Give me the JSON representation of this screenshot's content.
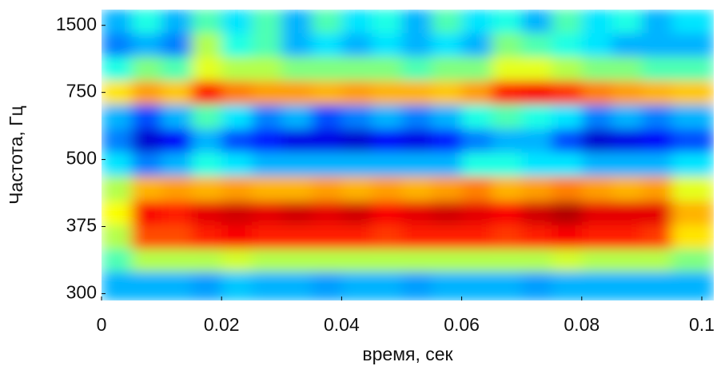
{
  "chart_data": {
    "type": "heatmap",
    "colormap": "jet",
    "yscale": "reciprocal",
    "x_label": "время, сек",
    "y_label": "Частота, Гц",
    "xlim": [
      0,
      0.102
    ],
    "xticks": [
      0,
      0.02,
      0.04,
      0.06,
      0.08,
      0.1
    ],
    "ylim": [
      294,
      1960
    ],
    "yticks": [
      300,
      375,
      500,
      750,
      1500
    ],
    "zlim": [
      0,
      1
    ],
    "x": [
      0.0025,
      0.0075,
      0.0125,
      0.0175,
      0.0225,
      0.0275,
      0.0325,
      0.0375,
      0.0425,
      0.0475,
      0.0525,
      0.0575,
      0.0625,
      0.0675,
      0.0725,
      0.0775,
      0.0825,
      0.0875,
      0.0925,
      0.0975
    ],
    "y": [
      1590,
      1160,
      910,
      750,
      635,
      550,
      490,
      435,
      395,
      360,
      333,
      310
    ],
    "z": [
      [
        0.3,
        0.4,
        0.3,
        0.45,
        0.35,
        0.45,
        0.3,
        0.45,
        0.35,
        0.4,
        0.3,
        0.45,
        0.35,
        0.4,
        0.3,
        0.45,
        0.35,
        0.4,
        0.3,
        0.35
      ],
      [
        0.25,
        0.3,
        0.25,
        0.55,
        0.4,
        0.45,
        0.3,
        0.35,
        0.3,
        0.35,
        0.3,
        0.35,
        0.3,
        0.5,
        0.45,
        0.4,
        0.35,
        0.3,
        0.3,
        0.3
      ],
      [
        0.4,
        0.5,
        0.45,
        0.6,
        0.55,
        0.55,
        0.5,
        0.5,
        0.5,
        0.5,
        0.45,
        0.5,
        0.5,
        0.6,
        0.6,
        0.55,
        0.5,
        0.5,
        0.45,
        0.45
      ],
      [
        0.65,
        0.72,
        0.68,
        0.85,
        0.75,
        0.72,
        0.72,
        0.7,
        0.72,
        0.7,
        0.7,
        0.68,
        0.72,
        0.85,
        0.88,
        0.82,
        0.75,
        0.72,
        0.7,
        0.68
      ],
      [
        0.3,
        0.2,
        0.3,
        0.45,
        0.35,
        0.25,
        0.3,
        0.2,
        0.25,
        0.3,
        0.25,
        0.3,
        0.4,
        0.45,
        0.4,
        0.35,
        0.25,
        0.3,
        0.25,
        0.3
      ],
      [
        0.25,
        0.08,
        0.12,
        0.3,
        0.2,
        0.15,
        0.1,
        0.1,
        0.08,
        0.12,
        0.1,
        0.15,
        0.25,
        0.3,
        0.3,
        0.2,
        0.08,
        0.1,
        0.12,
        0.2
      ],
      [
        0.35,
        0.25,
        0.3,
        0.4,
        0.35,
        0.3,
        0.3,
        0.3,
        0.3,
        0.3,
        0.3,
        0.3,
        0.4,
        0.4,
        0.35,
        0.35,
        0.3,
        0.3,
        0.3,
        0.35
      ],
      [
        0.55,
        0.7,
        0.72,
        0.7,
        0.72,
        0.7,
        0.7,
        0.72,
        0.7,
        0.72,
        0.7,
        0.72,
        0.75,
        0.7,
        0.72,
        0.75,
        0.72,
        0.7,
        0.72,
        0.6
      ],
      [
        0.62,
        0.88,
        0.85,
        0.9,
        0.92,
        0.9,
        0.92,
        0.9,
        0.92,
        0.88,
        0.9,
        0.92,
        0.9,
        0.88,
        0.92,
        0.95,
        0.9,
        0.9,
        0.9,
        0.7
      ],
      [
        0.55,
        0.8,
        0.8,
        0.85,
        0.88,
        0.85,
        0.85,
        0.85,
        0.85,
        0.82,
        0.85,
        0.85,
        0.85,
        0.82,
        0.85,
        0.88,
        0.85,
        0.85,
        0.82,
        0.65
      ],
      [
        0.45,
        0.55,
        0.55,
        0.55,
        0.58,
        0.55,
        0.55,
        0.55,
        0.55,
        0.55,
        0.55,
        0.55,
        0.55,
        0.55,
        0.55,
        0.58,
        0.55,
        0.55,
        0.55,
        0.5
      ],
      [
        0.3,
        0.3,
        0.3,
        0.28,
        0.32,
        0.3,
        0.3,
        0.28,
        0.3,
        0.3,
        0.28,
        0.3,
        0.3,
        0.3,
        0.28,
        0.3,
        0.3,
        0.3,
        0.3,
        0.3
      ]
    ]
  }
}
